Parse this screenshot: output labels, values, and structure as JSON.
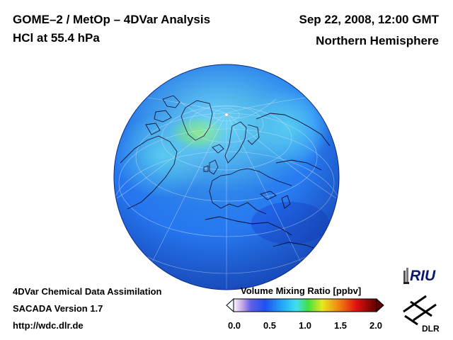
{
  "header": {
    "title_line1": "GOME–2 / MetOp – 4DVar Analysis",
    "title_line2": "HCl at 55.4 hPa",
    "date": "Sep 22, 2008, 12:00 GMT",
    "region": "Northern Hemisphere"
  },
  "footer": {
    "line1": "4DVar Chemical Data Assimilation",
    "line2": "SACADA Version 1.7",
    "line3": "http://wdc.dlr.de"
  },
  "colorbar": {
    "title": "Volume Mixing Ratio [ppbv]",
    "ticks": [
      "0.0",
      "0.5",
      "1.0",
      "1.5",
      "2.0"
    ],
    "range": [
      0.0,
      2.0
    ]
  },
  "logos": {
    "riu": "RIU",
    "dlr": "DLR"
  },
  "colors": {
    "ocean_blue": "#2a6ef0",
    "high_cyan": "#44c8f8",
    "max_green": "#70e070"
  }
}
